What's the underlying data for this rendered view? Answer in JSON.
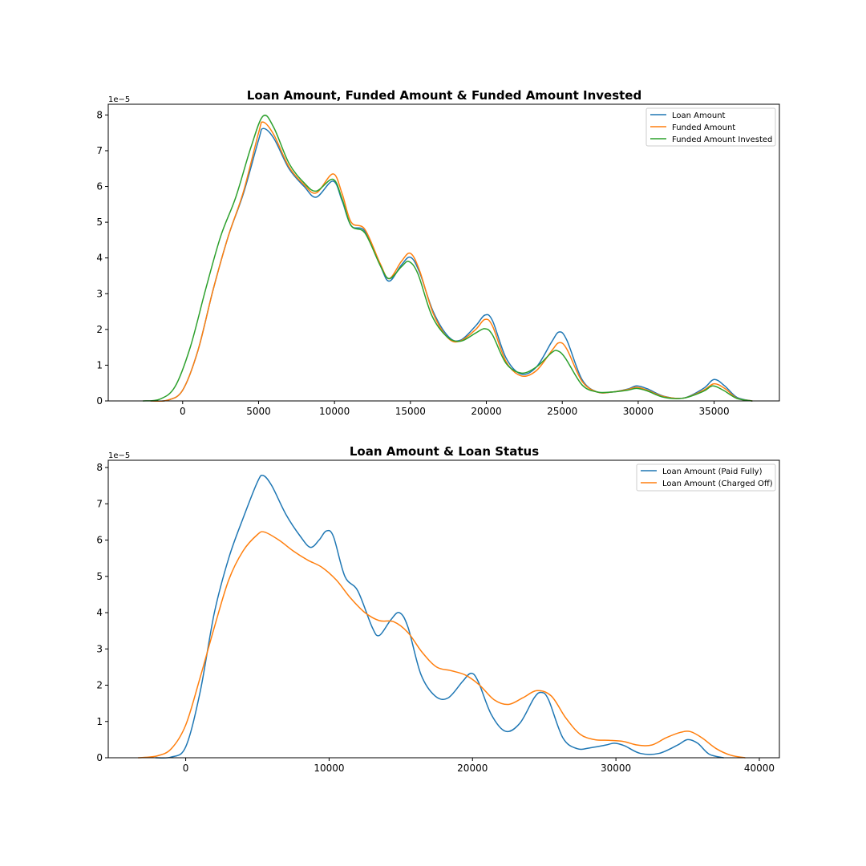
{
  "colors": {
    "blue": "#1f77b4",
    "orange": "#ff7f0e",
    "green": "#2ca02c"
  },
  "chart_data": [
    {
      "type": "line",
      "title": "Loan Amount, Funded Amount & Funded Amount Invested",
      "xlabel": "",
      "ylabel": "",
      "y_offset_label": "1e−5",
      "y_scale": 1e-05,
      "xlim": [
        -4900,
        39300
      ],
      "ylim": [
        0,
        8.3
      ],
      "xticks": [
        0,
        5000,
        10000,
        15000,
        20000,
        25000,
        30000,
        35000
      ],
      "xtick_labels": [
        "0",
        "5000",
        "10000",
        "15000",
        "20000",
        "25000",
        "30000",
        "35000"
      ],
      "yticks": [
        0,
        1,
        2,
        3,
        4,
        5,
        6,
        7,
        8
      ],
      "ytick_labels": [
        "0",
        "1",
        "2",
        "3",
        "4",
        "5",
        "6",
        "7",
        "8"
      ],
      "grid": false,
      "legend_position": "top-right",
      "series": [
        {
          "name": "Loan Amount",
          "color": "#1f77b4",
          "points": [
            [
              -2100,
              0
            ],
            [
              -1000,
              0.02
            ],
            [
              0,
              0.3
            ],
            [
              1000,
              1.4
            ],
            [
              2000,
              3.1
            ],
            [
              3000,
              4.6
            ],
            [
              4000,
              5.8
            ],
            [
              5000,
              7.3
            ],
            [
              5300,
              7.62
            ],
            [
              6000,
              7.35
            ],
            [
              7000,
              6.5
            ],
            [
              8000,
              6.0
            ],
            [
              8800,
              5.7
            ],
            [
              9900,
              6.15
            ],
            [
              10500,
              5.6
            ],
            [
              11100,
              4.9
            ],
            [
              12000,
              4.75
            ],
            [
              13000,
              3.8
            ],
            [
              13600,
              3.35
            ],
            [
              14400,
              3.8
            ],
            [
              15000,
              4.02
            ],
            [
              15600,
              3.6
            ],
            [
              16500,
              2.5
            ],
            [
              17500,
              1.8
            ],
            [
              18300,
              1.7
            ],
            [
              19300,
              2.1
            ],
            [
              19900,
              2.4
            ],
            [
              20400,
              2.25
            ],
            [
              21300,
              1.2
            ],
            [
              22300,
              0.75
            ],
            [
              23300,
              0.95
            ],
            [
              24300,
              1.65
            ],
            [
              24800,
              1.93
            ],
            [
              25300,
              1.7
            ],
            [
              26300,
              0.6
            ],
            [
              27300,
              0.25
            ],
            [
              28300,
              0.25
            ],
            [
              29300,
              0.33
            ],
            [
              29900,
              0.42
            ],
            [
              30600,
              0.34
            ],
            [
              31700,
              0.13
            ],
            [
              33000,
              0.08
            ],
            [
              34300,
              0.35
            ],
            [
              35000,
              0.6
            ],
            [
              35700,
              0.42
            ],
            [
              36500,
              0.1
            ],
            [
              37500,
              0.0
            ]
          ]
        },
        {
          "name": "Funded Amount",
          "color": "#ff7f0e",
          "points": [
            [
              -2100,
              0
            ],
            [
              -1000,
              0.02
            ],
            [
              0,
              0.3
            ],
            [
              1000,
              1.4
            ],
            [
              2000,
              3.1
            ],
            [
              3000,
              4.6
            ],
            [
              4000,
              5.85
            ],
            [
              5000,
              7.5
            ],
            [
              5300,
              7.8
            ],
            [
              6000,
              7.45
            ],
            [
              7000,
              6.55
            ],
            [
              8000,
              6.05
            ],
            [
              8800,
              5.82
            ],
            [
              9900,
              6.35
            ],
            [
              10500,
              5.8
            ],
            [
              11100,
              5.0
            ],
            [
              12000,
              4.8
            ],
            [
              13000,
              3.85
            ],
            [
              13600,
              3.42
            ],
            [
              14400,
              3.9
            ],
            [
              15000,
              4.13
            ],
            [
              15600,
              3.65
            ],
            [
              16500,
              2.45
            ],
            [
              17500,
              1.75
            ],
            [
              18300,
              1.68
            ],
            [
              19300,
              2.0
            ],
            [
              19900,
              2.28
            ],
            [
              20400,
              2.1
            ],
            [
              21300,
              1.1
            ],
            [
              22300,
              0.7
            ],
            [
              23300,
              0.85
            ],
            [
              24300,
              1.4
            ],
            [
              24800,
              1.63
            ],
            [
              25300,
              1.45
            ],
            [
              26300,
              0.55
            ],
            [
              27300,
              0.25
            ],
            [
              28300,
              0.25
            ],
            [
              29300,
              0.32
            ],
            [
              29900,
              0.38
            ],
            [
              30600,
              0.3
            ],
            [
              31700,
              0.12
            ],
            [
              33000,
              0.08
            ],
            [
              34300,
              0.3
            ],
            [
              35000,
              0.48
            ],
            [
              35700,
              0.35
            ],
            [
              36500,
              0.08
            ],
            [
              37500,
              0.0
            ]
          ]
        },
        {
          "name": "Funded Amount Invested",
          "color": "#2ca02c",
          "points": [
            [
              -2600,
              0
            ],
            [
              -1500,
              0.05
            ],
            [
              -500,
              0.4
            ],
            [
              500,
              1.5
            ],
            [
              1500,
              3.1
            ],
            [
              2500,
              4.6
            ],
            [
              3500,
              5.7
            ],
            [
              4500,
              7.1
            ],
            [
              5300,
              7.97
            ],
            [
              6000,
              7.65
            ],
            [
              7000,
              6.65
            ],
            [
              8000,
              6.1
            ],
            [
              8800,
              5.87
            ],
            [
              9900,
              6.2
            ],
            [
              10500,
              5.65
            ],
            [
              11100,
              4.9
            ],
            [
              12000,
              4.7
            ],
            [
              13000,
              3.8
            ],
            [
              13600,
              3.42
            ],
            [
              14400,
              3.75
            ],
            [
              14900,
              3.9
            ],
            [
              15500,
              3.55
            ],
            [
              16400,
              2.4
            ],
            [
              17400,
              1.8
            ],
            [
              18300,
              1.67
            ],
            [
              19300,
              1.9
            ],
            [
              19900,
              2.02
            ],
            [
              20400,
              1.85
            ],
            [
              21300,
              1.05
            ],
            [
              22300,
              0.78
            ],
            [
              23300,
              0.95
            ],
            [
              24300,
              1.35
            ],
            [
              24700,
              1.4
            ],
            [
              25200,
              1.2
            ],
            [
              26300,
              0.45
            ],
            [
              27300,
              0.25
            ],
            [
              28300,
              0.25
            ],
            [
              29300,
              0.3
            ],
            [
              29900,
              0.35
            ],
            [
              30600,
              0.28
            ],
            [
              31700,
              0.1
            ],
            [
              33000,
              0.08
            ],
            [
              34300,
              0.27
            ],
            [
              34900,
              0.42
            ],
            [
              35600,
              0.3
            ],
            [
              36500,
              0.07
            ],
            [
              37500,
              0.0
            ]
          ]
        }
      ]
    },
    {
      "type": "line",
      "title": "Loan Amount & Loan Status",
      "xlabel": "",
      "ylabel": "",
      "y_offset_label": "1e−5",
      "y_scale": 1e-05,
      "xlim": [
        -5400,
        41400
      ],
      "ylim": [
        0,
        8.2
      ],
      "xticks": [
        0,
        10000,
        20000,
        30000,
        40000
      ],
      "xtick_labels": [
        "0",
        "10000",
        "20000",
        "30000",
        "40000"
      ],
      "yticks": [
        0,
        1,
        2,
        3,
        4,
        5,
        6,
        7,
        8
      ],
      "ytick_labels": [
        "0",
        "1",
        "2",
        "3",
        "4",
        "5",
        "6",
        "7",
        "8"
      ],
      "grid": false,
      "legend_position": "top-right",
      "series": [
        {
          "name": "Loan Amount (Paid Fully)",
          "color": "#1f77b4",
          "points": [
            [
              -2100,
              0
            ],
            [
              -1000,
              0.02
            ],
            [
              0,
              0.3
            ],
            [
              1000,
              1.8
            ],
            [
              2000,
              4.0
            ],
            [
              3000,
              5.5
            ],
            [
              4000,
              6.6
            ],
            [
              5000,
              7.6
            ],
            [
              5400,
              7.78
            ],
            [
              6000,
              7.5
            ],
            [
              7000,
              6.7
            ],
            [
              8000,
              6.1
            ],
            [
              8700,
              5.8
            ],
            [
              9300,
              6.0
            ],
            [
              9800,
              6.25
            ],
            [
              10300,
              6.1
            ],
            [
              11100,
              5.0
            ],
            [
              12000,
              4.6
            ],
            [
              13000,
              3.6
            ],
            [
              13500,
              3.37
            ],
            [
              14300,
              3.8
            ],
            [
              14900,
              4.0
            ],
            [
              15500,
              3.6
            ],
            [
              16400,
              2.3
            ],
            [
              17400,
              1.7
            ],
            [
              18300,
              1.65
            ],
            [
              19300,
              2.1
            ],
            [
              19900,
              2.33
            ],
            [
              20400,
              2.1
            ],
            [
              21300,
              1.2
            ],
            [
              22300,
              0.73
            ],
            [
              23300,
              0.95
            ],
            [
              24300,
              1.65
            ],
            [
              24800,
              1.8
            ],
            [
              25300,
              1.6
            ],
            [
              26300,
              0.55
            ],
            [
              27300,
              0.25
            ],
            [
              28300,
              0.28
            ],
            [
              29300,
              0.35
            ],
            [
              29900,
              0.4
            ],
            [
              30600,
              0.33
            ],
            [
              31700,
              0.12
            ],
            [
              33000,
              0.12
            ],
            [
              34300,
              0.35
            ],
            [
              35000,
              0.5
            ],
            [
              35700,
              0.4
            ],
            [
              36500,
              0.1
            ],
            [
              37500,
              0.0
            ]
          ]
        },
        {
          "name": "Loan Amount (Charged Off)",
          "color": "#ff7f0e",
          "points": [
            [
              -3300,
              0
            ],
            [
              -2000,
              0.05
            ],
            [
              -1000,
              0.25
            ],
            [
              0,
              0.9
            ],
            [
              1000,
              2.2
            ],
            [
              2000,
              3.6
            ],
            [
              3000,
              4.9
            ],
            [
              4000,
              5.7
            ],
            [
              5000,
              6.15
            ],
            [
              5500,
              6.22
            ],
            [
              6500,
              6.0
            ],
            [
              7500,
              5.7
            ],
            [
              8500,
              5.45
            ],
            [
              9500,
              5.25
            ],
            [
              10500,
              4.9
            ],
            [
              11500,
              4.4
            ],
            [
              12500,
              4.0
            ],
            [
              13500,
              3.78
            ],
            [
              14500,
              3.75
            ],
            [
              15500,
              3.45
            ],
            [
              16500,
              2.9
            ],
            [
              17500,
              2.5
            ],
            [
              18500,
              2.4
            ],
            [
              19500,
              2.28
            ],
            [
              20500,
              2.0
            ],
            [
              21500,
              1.6
            ],
            [
              22500,
              1.47
            ],
            [
              23500,
              1.65
            ],
            [
              24500,
              1.85
            ],
            [
              25500,
              1.7
            ],
            [
              26500,
              1.1
            ],
            [
              27500,
              0.65
            ],
            [
              28500,
              0.5
            ],
            [
              29500,
              0.48
            ],
            [
              30500,
              0.45
            ],
            [
              31500,
              0.35
            ],
            [
              32500,
              0.35
            ],
            [
              33500,
              0.55
            ],
            [
              34500,
              0.7
            ],
            [
              35200,
              0.72
            ],
            [
              36000,
              0.55
            ],
            [
              37000,
              0.25
            ],
            [
              38000,
              0.07
            ],
            [
              39000,
              0.0
            ]
          ]
        }
      ]
    }
  ]
}
